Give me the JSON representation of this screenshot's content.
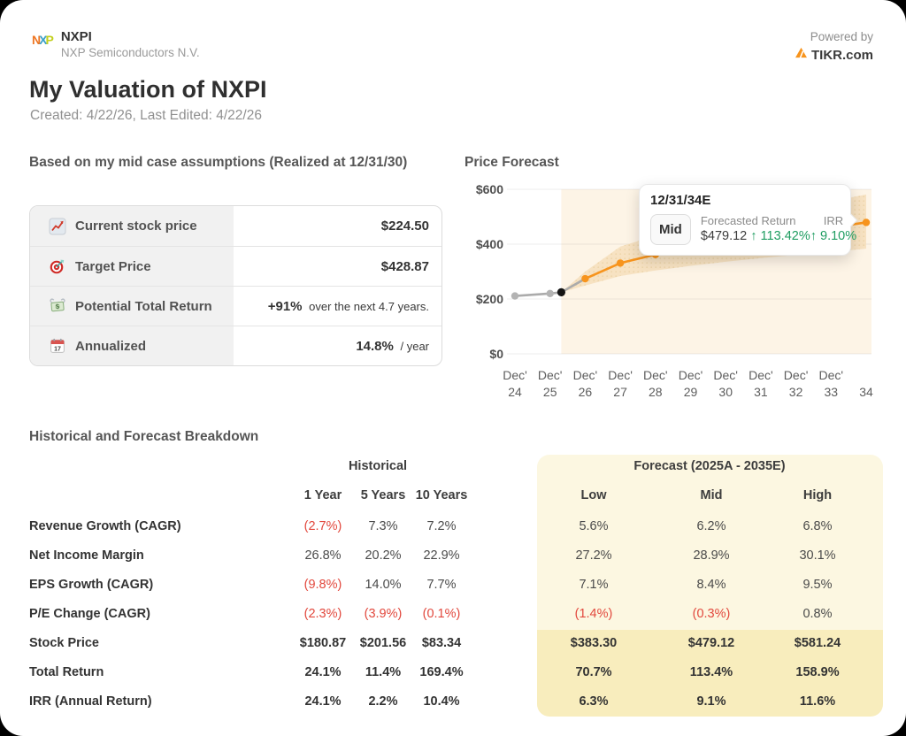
{
  "header": {
    "ticker": "NXPI",
    "company": "NXP Semiconductors N.V.",
    "powered_by": "Powered by",
    "brand": "TIKR.com"
  },
  "title": {
    "main": "My Valuation of NXPI",
    "meta": "Created: 4/22/26, Last Edited: 4/22/26"
  },
  "summary": {
    "heading": "Based on my mid case assumptions (Realized at 12/31/30)",
    "rows": [
      {
        "icon": "chart-increasing-icon",
        "label": "Current stock price",
        "value": "$224.50",
        "suffix": ""
      },
      {
        "icon": "target-icon",
        "label": "Target Price",
        "value": "$428.87",
        "suffix": ""
      },
      {
        "icon": "money-with-wings-icon",
        "label": "Potential Total Return",
        "value": "+91%",
        "suffix": " over the next 4.7 years."
      },
      {
        "icon": "calendar-icon",
        "label": "Annualized",
        "value": "14.8%",
        "suffix": " / year"
      }
    ]
  },
  "chart": {
    "heading": "Price Forecast",
    "tooltip": {
      "date": "12/31/34E",
      "badge": "Mid",
      "return_label": "Forecasted Return",
      "return_value": "$479.12",
      "return_change": "↑ 113.42%",
      "irr_label": "IRR",
      "irr_value": "↑ 9.10%"
    }
  },
  "chart_data": {
    "type": "line",
    "title": "Price Forecast",
    "y_ticks": [
      0,
      200,
      400,
      600
    ],
    "y_tick_labels": [
      "$0",
      "$200",
      "$400",
      "$600"
    ],
    "ylim": [
      0,
      600
    ],
    "x_tick_top": [
      "Dec'",
      "Dec'",
      "Dec'",
      "Dec'",
      "Dec'",
      "Dec'",
      "Dec'",
      "Dec'",
      "Dec'",
      "Dec'",
      ""
    ],
    "x_tick_bottom": [
      "24",
      "25",
      "26",
      "27",
      "28",
      "29",
      "30",
      "31",
      "32",
      "33",
      "34"
    ],
    "series": [
      {
        "name": "Historical",
        "color": "#ababab",
        "x": [
          0,
          1,
          1.32,
          2
        ],
        "y": [
          211,
          220,
          224.5,
          274
        ],
        "dot_indices": [
          0,
          1
        ],
        "dot_color": "#b3b3b3"
      },
      {
        "name": "Mid Forecast",
        "color": "#f7941d",
        "x": [
          2,
          3,
          4,
          5,
          6,
          7,
          8,
          9,
          10
        ],
        "y": [
          274,
          331,
          362,
          388,
          408,
          426,
          444,
          461,
          479.12
        ],
        "dot_indices": [
          0,
          1,
          2,
          3,
          4,
          5,
          6,
          7,
          8
        ],
        "dot_color": "#f7941d"
      }
    ],
    "current_point": {
      "x": 1.32,
      "y": 224.5,
      "color": "#141414"
    },
    "band": {
      "x": [
        1.32,
        2,
        3,
        4,
        5,
        6,
        7,
        8,
        9,
        10
      ],
      "low": [
        224.5,
        249,
        284,
        304,
        321,
        336,
        349,
        361,
        372,
        383.3
      ],
      "high": [
        224.5,
        300,
        391,
        431,
        461,
        486,
        509,
        531,
        556,
        581.24
      ],
      "color": "#f6e0be"
    },
    "forecast_zone": {
      "x_start": 1.32,
      "color": "#fdf4e6"
    },
    "legend": "none",
    "grid": true
  },
  "breakdown": {
    "heading": "Historical and Forecast Breakdown",
    "historical_header": "Historical",
    "historical_cols": [
      "1 Year",
      "5 Years",
      "10 Years"
    ],
    "forecast_header": "Forecast (2025A - 2035E)",
    "forecast_cols": [
      "Low",
      "Mid",
      "High"
    ],
    "rows": [
      {
        "label": "Revenue Growth (CAGR)",
        "historical": [
          "(2.7%)",
          "7.3%",
          "7.2%"
        ],
        "forecast": [
          "5.6%",
          "6.2%",
          "6.8%"
        ],
        "bold": false
      },
      {
        "label": "Net Income Margin",
        "historical": [
          "26.8%",
          "20.2%",
          "22.9%"
        ],
        "forecast": [
          "27.2%",
          "28.9%",
          "30.1%"
        ],
        "bold": false
      },
      {
        "label": "EPS Growth (CAGR)",
        "historical": [
          "(9.8%)",
          "14.0%",
          "7.7%"
        ],
        "forecast": [
          "7.1%",
          "8.4%",
          "9.5%"
        ],
        "bold": false
      },
      {
        "label": "P/E Change (CAGR)",
        "historical": [
          "(2.3%)",
          "(3.9%)",
          "(0.1%)"
        ],
        "forecast": [
          "(1.4%)",
          "(0.3%)",
          "0.8%"
        ],
        "bold": false
      },
      {
        "label": "Stock Price",
        "historical": [
          "$180.87",
          "$201.56",
          "$83.34"
        ],
        "forecast": [
          "$383.30",
          "$479.12",
          "$581.24"
        ],
        "bold": true
      },
      {
        "label": "Total Return",
        "historical": [
          "24.1%",
          "11.4%",
          "169.4%"
        ],
        "forecast": [
          "70.7%",
          "113.4%",
          "158.9%"
        ],
        "bold": true
      },
      {
        "label": "IRR (Annual Return)",
        "historical": [
          "24.1%",
          "2.2%",
          "10.4%"
        ],
        "forecast": [
          "6.3%",
          "9.1%",
          "11.6%"
        ],
        "bold": true
      }
    ]
  },
  "colors": {
    "accent_orange": "#f7941d",
    "negative_red": "#e2483d",
    "positive_green": "#1f9d61",
    "forecast_panel_bg": "#fcf7e1",
    "forecast_panel_dark_bg": "#f8edbd"
  }
}
